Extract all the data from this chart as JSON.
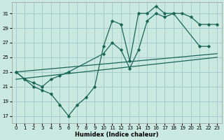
{
  "xlabel": "Humidex (Indice chaleur)",
  "xlim": [
    -0.5,
    23.5
  ],
  "ylim": [
    16.0,
    32.5
  ],
  "xticks": [
    0,
    1,
    2,
    3,
    4,
    5,
    6,
    7,
    8,
    9,
    10,
    11,
    12,
    13,
    14,
    15,
    16,
    17,
    18,
    19,
    20,
    21,
    22,
    23
  ],
  "yticks": [
    17,
    19,
    21,
    23,
    25,
    27,
    29,
    31
  ],
  "bg_color": "#c8e8e0",
  "grid_color": "#a8cccc",
  "line_color": "#1a6655",
  "line1_x": [
    0,
    1,
    2,
    3,
    4,
    5,
    6,
    7,
    8,
    9,
    10,
    11,
    12,
    13,
    14,
    15,
    16,
    17,
    18,
    21,
    22
  ],
  "line1_y": [
    23,
    22,
    21,
    20.5,
    20,
    18.5,
    17,
    18.5,
    19.5,
    21,
    26.5,
    30,
    29.5,
    24.5,
    31,
    31,
    32,
    31,
    31,
    26.5,
    26.5
  ],
  "line2_x": [
    0,
    1,
    2,
    3,
    4,
    5,
    6,
    10,
    11,
    12,
    13,
    14,
    15,
    16,
    17,
    18,
    19,
    20,
    21,
    22,
    23
  ],
  "line2_y": [
    23,
    22,
    21.5,
    21,
    22,
    22.5,
    23,
    25.5,
    27,
    26,
    23.5,
    26,
    30,
    31,
    30.5,
    31,
    31,
    30.5,
    29.5,
    29.5,
    29.5
  ],
  "line3_x": [
    0,
    23
  ],
  "line3_y": [
    23,
    25.5
  ],
  "line4_x": [
    0,
    23
  ],
  "line4_y": [
    22,
    25.0
  ]
}
